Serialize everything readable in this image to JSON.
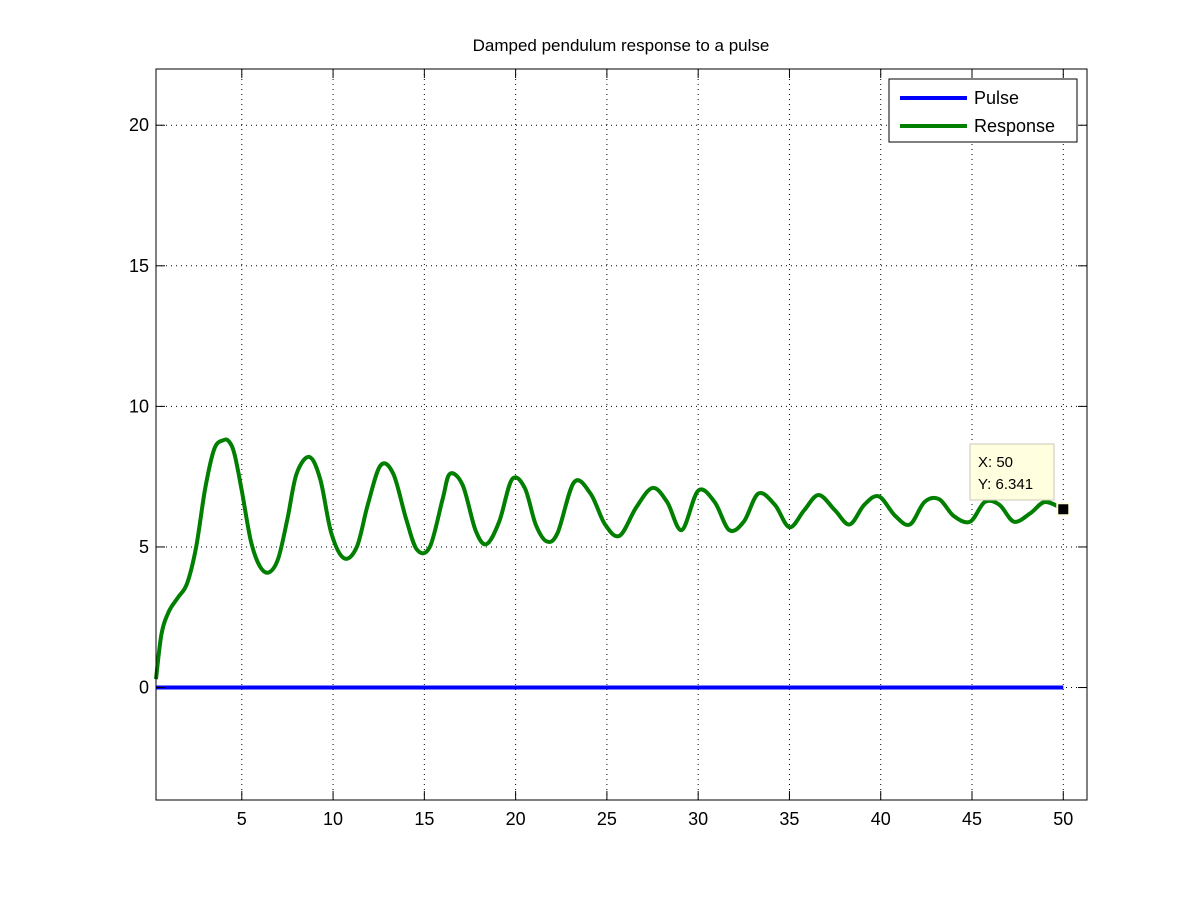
{
  "chart_data": {
    "type": "line",
    "title": "Damped pendulum response to a pulse",
    "xlabel": "",
    "ylabel": "",
    "xlim": [
      0.3,
      51.3
    ],
    "ylim": [
      -4,
      22
    ],
    "x_ticks": [
      5,
      10,
      15,
      20,
      25,
      30,
      35,
      40,
      45,
      50
    ],
    "y_ticks": [
      0,
      5,
      10,
      15,
      20
    ],
    "x_tick_labels": [
      "5",
      "10",
      "15",
      "20",
      "25",
      "30",
      "35",
      "40",
      "45",
      "50"
    ],
    "y_tick_labels": [
      "0",
      "5",
      "10",
      "15",
      "20"
    ],
    "grid": true,
    "legend_position": "top-right",
    "series": [
      {
        "name": "Pulse",
        "color": "#0000ff",
        "x": [
          0.3,
          50
        ],
        "y": [
          0,
          0
        ]
      },
      {
        "name": "Response",
        "color": "#007f00",
        "x": [
          0.3,
          0.6,
          1.0,
          1.5,
          2.0,
          2.5,
          3.0,
          3.5,
          4.0,
          4.3,
          4.6,
          5.0,
          5.5,
          6.0,
          6.5,
          7.0,
          7.5,
          8.0,
          8.7,
          9.3,
          9.9,
          10.6,
          11.3,
          11.9,
          12.6,
          13.3,
          14.0,
          14.6,
          15.3,
          16.0,
          16.4,
          17.1,
          17.8,
          18.4,
          19.1,
          19.8,
          20.5,
          21.1,
          21.7,
          22.3,
          23.2,
          24.1,
          24.9,
          25.7,
          26.6,
          27.5,
          28.3,
          29.1,
          30.0,
          30.9,
          31.7,
          32.5,
          33.3,
          34.2,
          35.0,
          35.8,
          36.6,
          37.5,
          38.3,
          39.1,
          39.9,
          40.8,
          41.6,
          42.4,
          43.2,
          44.0,
          44.9,
          45.7,
          46.5,
          47.3,
          48.2,
          49.0,
          50.0
        ],
        "y": [
          0.3,
          1.9,
          2.7,
          3.2,
          3.7,
          5.0,
          7.1,
          8.5,
          8.8,
          8.75,
          8.3,
          7.0,
          5.2,
          4.3,
          4.1,
          4.6,
          6.0,
          7.6,
          8.2,
          7.4,
          5.5,
          4.6,
          5.0,
          6.5,
          7.9,
          7.6,
          6.0,
          4.9,
          5.0,
          6.7,
          7.6,
          7.2,
          5.6,
          5.1,
          5.9,
          7.4,
          7.1,
          5.8,
          5.2,
          5.5,
          7.3,
          6.9,
          5.8,
          5.4,
          6.4,
          7.1,
          6.6,
          5.6,
          7.0,
          6.6,
          5.6,
          5.9,
          6.9,
          6.5,
          5.7,
          6.3,
          6.85,
          6.3,
          5.8,
          6.5,
          6.8,
          6.1,
          5.8,
          6.6,
          6.7,
          6.1,
          5.9,
          6.6,
          6.5,
          5.9,
          6.2,
          6.6,
          6.341
        ]
      }
    ],
    "annotations": [
      {
        "type": "datatip",
        "x": 50,
        "y": 6.341,
        "line1": "X: 50",
        "line2": "Y: 6.341"
      }
    ]
  }
}
